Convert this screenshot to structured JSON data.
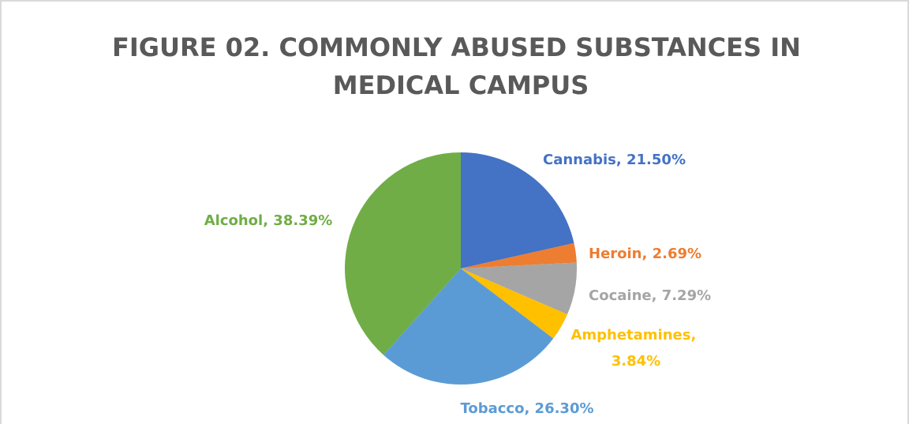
{
  "chart_data": {
    "type": "pie",
    "title": "FIGURE 02. COMMONLY ABUSED SUBSTANCES IN MEDICAL CAMPUS",
    "values": [
      21.5,
      2.69,
      7.29,
      3.84,
      26.3,
      38.39
    ],
    "value_labels": [
      "Cannabis, 21.50%",
      "Heroin, 2.69%",
      "Cocaine, 7.29%",
      "Amphetamines, 3.84%",
      "Tobacco, 26.30%",
      "Alcohol, 38.39%"
    ],
    "colors": [
      "#4472c4",
      "#ed7d31",
      "#a5a5a5",
      "#ffc000",
      "#5b9bd5",
      "#70ad47"
    ]
  }
}
